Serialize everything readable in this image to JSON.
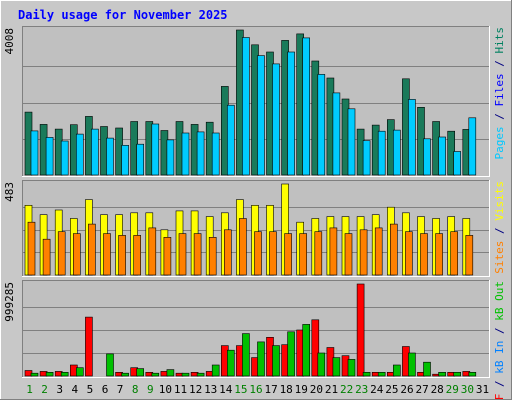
{
  "chart_data": {
    "type": "bar",
    "title": "Daily usage for November 2025",
    "categories": [
      "1",
      "2",
      "3",
      "4",
      "5",
      "6",
      "7",
      "8",
      "9",
      "10",
      "11",
      "12",
      "13",
      "14",
      "15",
      "16",
      "17",
      "18",
      "19",
      "20",
      "21",
      "22",
      "23",
      "24",
      "25",
      "26",
      "27",
      "28",
      "29",
      "30",
      "31"
    ],
    "weekend_days": [
      "1",
      "2",
      "8",
      "9",
      "15",
      "16",
      "22",
      "23",
      "29",
      "30"
    ],
    "panels": [
      {
        "id": "hits-files-pages",
        "ymax_label": "4008",
        "ylim": [
          0,
          4008
        ],
        "right_labels": [
          {
            "text": "Pages",
            "color": "#00c8ff"
          },
          {
            "text": " / ",
            "color": "#000080"
          },
          {
            "text": "Files",
            "color": "#0000ff"
          },
          {
            "text": " / ",
            "color": "#000080"
          },
          {
            "text": "Hits",
            "color": "#008060"
          }
        ],
        "series": [
          {
            "name": "Hits",
            "color": "#1a7a5a",
            "values": [
              1740,
              1400,
              1270,
              1390,
              1620,
              1340,
              1300,
              1480,
              1480,
              1230,
              1480,
              1400,
              1460,
              2450,
              4008,
              3600,
              3400,
              3720,
              3900,
              3150,
              2680,
              2100,
              1270,
              1380,
              1530,
              2660,
              1870,
              1480,
              1210,
              1260,
              0
            ]
          },
          {
            "name": "Files",
            "color": "#0088ff",
            "values": [
              0,
              0,
              0,
              0,
              0,
              0,
              0,
              0,
              0,
              0,
              0,
              0,
              0,
              0,
              0,
              0,
              0,
              0,
              0,
              0,
              0,
              0,
              0,
              0,
              0,
              0,
              0,
              0,
              0,
              0,
              0
            ]
          },
          {
            "name": "Pages",
            "color": "#00ccff",
            "values": [
              1220,
              1040,
              940,
              1130,
              1270,
              1020,
              820,
              850,
              1410,
              970,
              1160,
              1190,
              1160,
              1930,
              3800,
              3300,
              3070,
              3400,
              3790,
              2780,
              2270,
              1830,
              950,
              1210,
              1240,
              2090,
              1000,
              1050,
              650,
              1580,
              0
            ]
          }
        ]
      },
      {
        "id": "visits-sites",
        "ymax_label": "483",
        "ylim": [
          0,
          483
        ],
        "right_labels": [
          {
            "text": "Sites",
            "color": "#ff8000"
          },
          {
            "text": " / ",
            "color": "#000080"
          },
          {
            "text": "Visits",
            "color": "#ffff00"
          }
        ],
        "series": [
          {
            "name": "Visits",
            "color": "#ffff00",
            "values": [
              370,
              320,
              345,
              300,
              400,
              320,
              320,
              330,
              330,
              240,
              340,
              340,
              310,
              330,
              400,
              370,
              370,
              483,
              280,
              300,
              310,
              310,
              310,
              320,
              360,
              330,
              310,
              300,
              310,
              300,
              0
            ]
          },
          {
            "name": "Sites",
            "color": "#ff8000",
            "values": [
              280,
              190,
              230,
              220,
              270,
              220,
              210,
              210,
              250,
              200,
              220,
              220,
              200,
              240,
              300,
              230,
              230,
              220,
              220,
              230,
              250,
              220,
              240,
              250,
              270,
              230,
              220,
              220,
              230,
              210,
              0
            ]
          }
        ]
      },
      {
        "id": "kbf-kbin-kbout",
        "ymax_label": "999285",
        "ylim": [
          0,
          999285
        ],
        "right_labels": [
          {
            "text": "kB F",
            "color": "#ff0000"
          },
          {
            "text": " / ",
            "color": "#000080"
          },
          {
            "text": "kB In",
            "color": "#0080ff"
          },
          {
            "text": " / ",
            "color": "#000080"
          },
          {
            "text": "kB Out",
            "color": "#00c000"
          }
        ],
        "series": [
          {
            "name": "kB F",
            "color": "#ff0000",
            "values": [
              60000,
              50000,
              50000,
              120000,
              640000,
              0,
              40000,
              90000,
              40000,
              50000,
              30000,
              40000,
              50000,
              330000,
              330000,
              200000,
              420000,
              340000,
              500000,
              610000,
              310000,
              220000,
              999285,
              40000,
              40000,
              320000,
              40000,
              20000,
              40000,
              50000,
              0
            ]
          },
          {
            "name": "kB In",
            "color": "#0080ff",
            "values": [
              0,
              0,
              0,
              0,
              0,
              0,
              0,
              0,
              0,
              0,
              0,
              0,
              0,
              0,
              0,
              0,
              0,
              0,
              0,
              0,
              0,
              0,
              0,
              0,
              0,
              0,
              0,
              0,
              0,
              0,
              0
            ]
          },
          {
            "name": "kB Out",
            "color": "#00c000",
            "values": [
              30000,
              40000,
              40000,
              90000,
              0,
              240000,
              30000,
              80000,
              30000,
              70000,
              30000,
              30000,
              120000,
              280000,
              460000,
              370000,
              330000,
              480000,
              560000,
              250000,
              200000,
              180000,
              40000,
              40000,
              120000,
              250000,
              150000,
              40000,
              40000,
              40000,
              0
            ]
          }
        ]
      }
    ]
  }
}
